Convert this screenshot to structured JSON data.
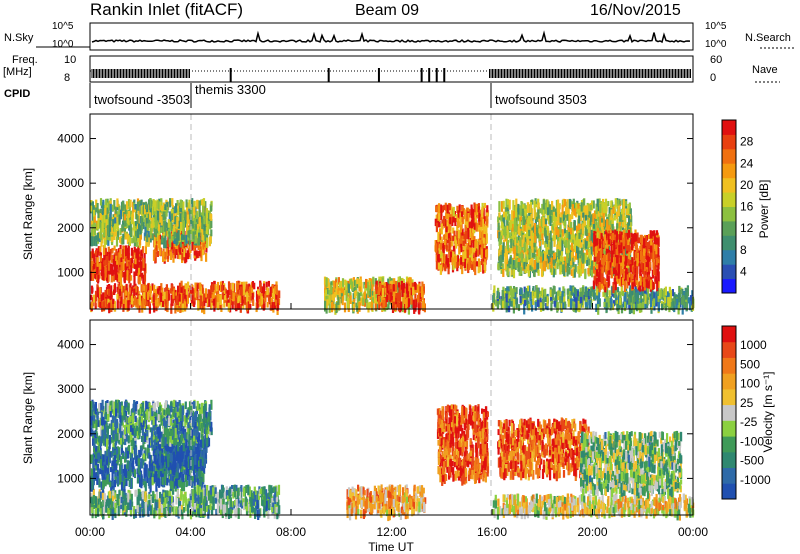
{
  "header": {
    "station": "Rankin Inlet (fitACF)",
    "beam": "Beam 09",
    "date": "16/Nov/2015"
  },
  "status": {
    "nsky_label": "N.Sky",
    "nsky_ticks": [
      "10^5",
      "10^0"
    ],
    "nsearch_label": "N.Search",
    "freq_label_1": "Freq.",
    "freq_label_2": "[MHz]",
    "freq_ticks": [
      "10",
      "8"
    ],
    "nave_label": "Nave",
    "nave_ticks": [
      "60",
      "0"
    ],
    "cpid_label": "CPID",
    "cpid_segments": [
      {
        "name": "twofsound -3503",
        "start": 0,
        "end": 3.8
      },
      {
        "name": "themis 3300",
        "start": 3.8,
        "end": 15.9
      },
      {
        "name": "twofsound 3503",
        "start": 15.9,
        "end": 24
      }
    ]
  },
  "chart_data": [
    {
      "type": "heatmap",
      "panel": "power",
      "ylabel": "Slant Range [km]",
      "xlabel": "",
      "xlim": [
        0,
        24
      ],
      "ylim": [
        180,
        4550
      ],
      "yticks": [
        "1000",
        "2000",
        "3000",
        "4000"
      ],
      "colorbar": {
        "label": "Power [dB]",
        "ticks": [
          "4",
          "8",
          "12",
          "16",
          "20",
          "24",
          "28"
        ],
        "colors": [
          "#1a1aff",
          "#2a4fb3",
          "#2e7ea8",
          "#3f8f6f",
          "#5aa058",
          "#8cc040",
          "#c8d028",
          "#f0c020",
          "#f59a10",
          "#f07010",
          "#e84010",
          "#e01010"
        ]
      },
      "blobs": [
        {
          "t0": 0.0,
          "t1": 3.8,
          "r0": 220,
          "r1": 700,
          "level": 0.85
        },
        {
          "t0": 0.0,
          "t1": 2.2,
          "r0": 850,
          "r1": 1550,
          "level": 0.9
        },
        {
          "t0": 2.5,
          "t1": 4.6,
          "r0": 1350,
          "r1": 2000,
          "level": 0.85
        },
        {
          "t0": 0.0,
          "t1": 4.8,
          "r0": 1700,
          "r1": 2600,
          "level": 0.45
        },
        {
          "t0": 3.5,
          "t1": 7.5,
          "r0": 220,
          "r1": 750,
          "level": 0.82
        },
        {
          "t0": 9.3,
          "t1": 12.8,
          "r0": 220,
          "r1": 850,
          "level": 0.55
        },
        {
          "t0": 11.3,
          "t1": 13.3,
          "r0": 220,
          "r1": 750,
          "level": 0.85
        },
        {
          "t0": 13.7,
          "t1": 15.8,
          "r0": 1100,
          "r1": 2500,
          "level": 0.8
        },
        {
          "t0": 16.0,
          "t1": 24.0,
          "r0": 220,
          "r1": 650,
          "level": 0.35
        },
        {
          "t0": 16.2,
          "t1": 21.5,
          "r0": 1000,
          "r1": 2600,
          "level": 0.5
        },
        {
          "t0": 20.0,
          "t1": 22.6,
          "r0": 700,
          "r1": 1900,
          "level": 0.9
        }
      ]
    },
    {
      "type": "heatmap",
      "panel": "velocity",
      "ylabel": "Slant Range [km]",
      "xlabel": "Time UT",
      "xlim": [
        0,
        24
      ],
      "ylim": [
        180,
        4550
      ],
      "xticks": [
        "00:00",
        "04:00",
        "08:00",
        "12:00",
        "16:00",
        "20:00",
        "00:00"
      ],
      "yticks": [
        "1000",
        "2000",
        "3000",
        "4000"
      ],
      "colorbar": {
        "label": "Velocity [m s⁻¹]",
        "ticks": [
          "1000",
          "500",
          "100",
          "25",
          "-25",
          "-100",
          "-500",
          "-1000"
        ],
        "colors": [
          "#2050b0",
          "#2e6aa8",
          "#2f8870",
          "#3f9a58",
          "#8bd040",
          "#c8c8c8",
          "#f0c030",
          "#f0a020",
          "#f07818",
          "#e84818",
          "#e01010"
        ]
      },
      "blobs": [
        {
          "t0": 0.0,
          "t1": 4.5,
          "r0": 220,
          "r1": 700,
          "level": 0.35
        },
        {
          "t0": 0.0,
          "t1": 4.5,
          "r0": 850,
          "r1": 1700,
          "level": 0.15
        },
        {
          "t0": 2.5,
          "t1": 4.6,
          "r0": 1300,
          "r1": 2000,
          "level": 0.05
        },
        {
          "t0": 0.0,
          "t1": 4.8,
          "r0": 1800,
          "r1": 2700,
          "level": 0.25
        },
        {
          "t0": 4.0,
          "t1": 7.5,
          "r0": 220,
          "r1": 800,
          "level": 0.3
        },
        {
          "t0": 10.2,
          "t1": 13.3,
          "r0": 220,
          "r1": 800,
          "level": 0.65
        },
        {
          "t0": 13.8,
          "t1": 15.8,
          "r0": 1000,
          "r1": 2600,
          "level": 0.85
        },
        {
          "t0": 16.2,
          "t1": 19.8,
          "r0": 1100,
          "r1": 2300,
          "level": 0.8
        },
        {
          "t0": 16.0,
          "t1": 24.0,
          "r0": 220,
          "r1": 600,
          "level": 0.55
        },
        {
          "t0": 19.5,
          "t1": 23.5,
          "r0": 700,
          "r1": 2000,
          "level": 0.4
        }
      ]
    }
  ]
}
